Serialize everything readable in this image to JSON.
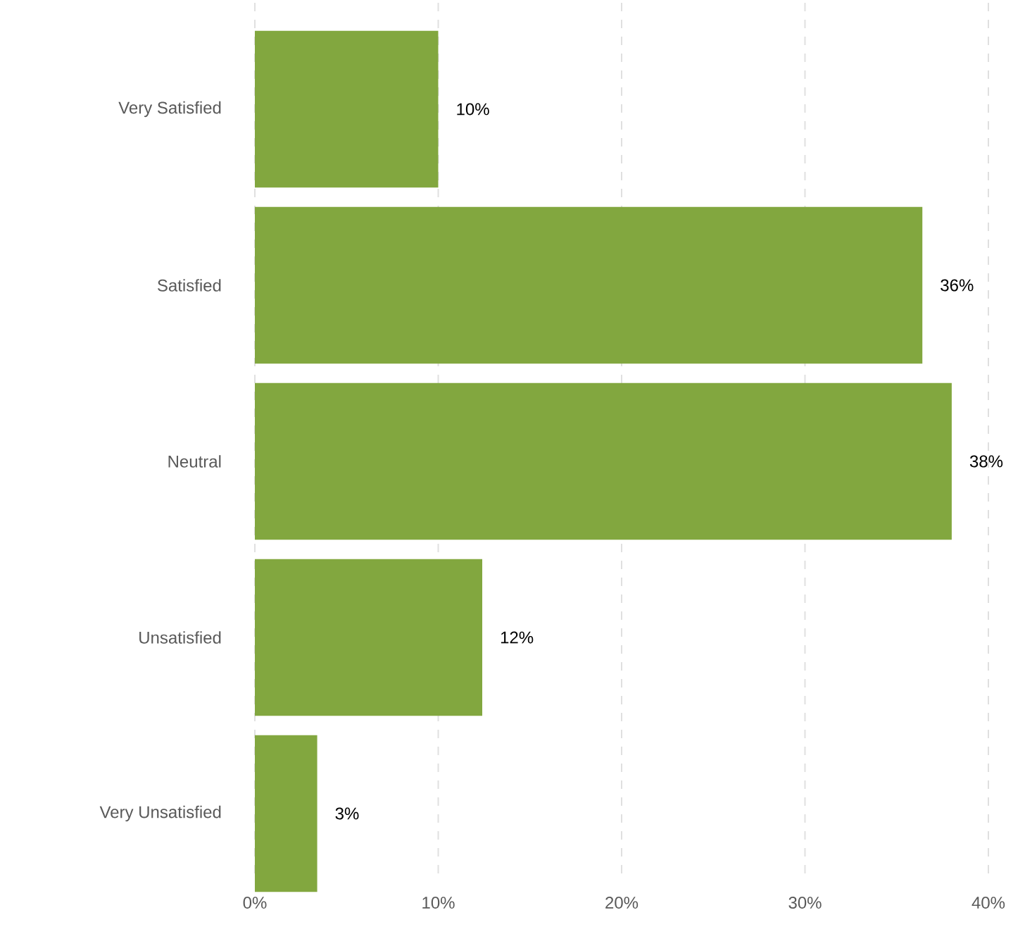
{
  "chart_data": {
    "type": "bar",
    "orientation": "horizontal",
    "categories": [
      "Very Satisfied",
      "Satisfied",
      "Neutral",
      "Unsatisfied",
      "Very Unsatisfied"
    ],
    "values": [
      10.0,
      36.4,
      38.0,
      12.4,
      3.4
    ],
    "value_labels": [
      "10%",
      "36%",
      "38%",
      "12%",
      "3%"
    ],
    "color": "#82a73f",
    "xlim": [
      0,
      40
    ],
    "xticks": [
      {
        "value": 0,
        "label": "0%"
      },
      {
        "value": 10,
        "label": "10%"
      },
      {
        "value": 20,
        "label": "20%"
      },
      {
        "value": 30,
        "label": "30%"
      },
      {
        "value": 40,
        "label": "40%"
      }
    ],
    "grid": "x"
  }
}
